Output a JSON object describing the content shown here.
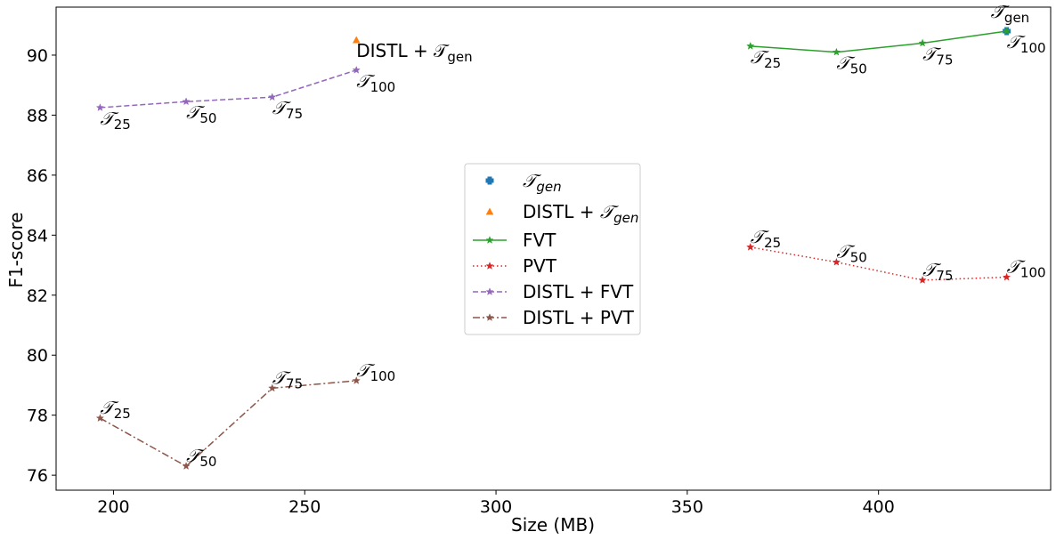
{
  "chart_data": {
    "type": "line",
    "xlabel": "Size (MB)",
    "ylabel": "F1-score",
    "xlim": [
      185,
      445
    ],
    "ylim": [
      75.5,
      91.6
    ],
    "xticks": [
      200,
      250,
      300,
      350,
      400
    ],
    "yticks": [
      76,
      78,
      80,
      82,
      84,
      86,
      88,
      90
    ],
    "grid": false,
    "legend_position": "center",
    "series": [
      {
        "name": "𝒯gen",
        "kind": "marker",
        "marker": "plus",
        "color": "#1f77b4",
        "points": [
          {
            "x": 433.5,
            "y": 90.8,
            "label": "𝒯",
            "sub": "gen"
          }
        ]
      },
      {
        "name": "DISTL + 𝒯gen",
        "kind": "marker",
        "marker": "triangle",
        "color": "#ff7f0e",
        "points": [
          {
            "x": 263.5,
            "y": 90.5,
            "label": "DISTL + 𝒯",
            "sub": "gen"
          }
        ]
      },
      {
        "name": "FVT",
        "kind": "line",
        "style": "solid",
        "color": "#2ca02c",
        "points": [
          {
            "x": 366.5,
            "y": 90.3,
            "label": "𝒯",
            "sub": "25"
          },
          {
            "x": 389,
            "y": 90.1,
            "label": "𝒯",
            "sub": "50"
          },
          {
            "x": 411.5,
            "y": 90.4,
            "label": "𝒯",
            "sub": "75"
          },
          {
            "x": 433.5,
            "y": 90.8,
            "label": "𝒯",
            "sub": "100"
          }
        ]
      },
      {
        "name": "PVT",
        "kind": "line",
        "style": "dotted",
        "color": "#d62728",
        "points": [
          {
            "x": 366.5,
            "y": 83.6,
            "label": "𝒯",
            "sub": "25"
          },
          {
            "x": 389,
            "y": 83.1,
            "label": "𝒯",
            "sub": "50"
          },
          {
            "x": 411.5,
            "y": 82.5,
            "label": "𝒯",
            "sub": "75"
          },
          {
            "x": 433.5,
            "y": 82.6,
            "label": "𝒯",
            "sub": "100"
          }
        ]
      },
      {
        "name": "DISTL + FVT",
        "kind": "line",
        "style": "dashed",
        "color": "#9467bd",
        "points": [
          {
            "x": 196.5,
            "y": 88.25,
            "label": "𝒯",
            "sub": "25"
          },
          {
            "x": 219,
            "y": 88.45,
            "label": "𝒯",
            "sub": "50"
          },
          {
            "x": 241.5,
            "y": 88.6,
            "label": "𝒯",
            "sub": "75"
          },
          {
            "x": 263.5,
            "y": 89.5,
            "label": "𝒯",
            "sub": "100"
          }
        ]
      },
      {
        "name": "DISTL + PVT",
        "kind": "line",
        "style": "dashdot",
        "color": "#8c564b",
        "points": [
          {
            "x": 196.5,
            "y": 77.9,
            "label": "𝒯",
            "sub": "25"
          },
          {
            "x": 219,
            "y": 76.3,
            "label": "𝒯",
            "sub": "50"
          },
          {
            "x": 241.5,
            "y": 78.9,
            "label": "𝒯",
            "sub": "75"
          },
          {
            "x": 263.5,
            "y": 79.15,
            "label": "𝒯",
            "sub": "100"
          }
        ]
      }
    ]
  }
}
